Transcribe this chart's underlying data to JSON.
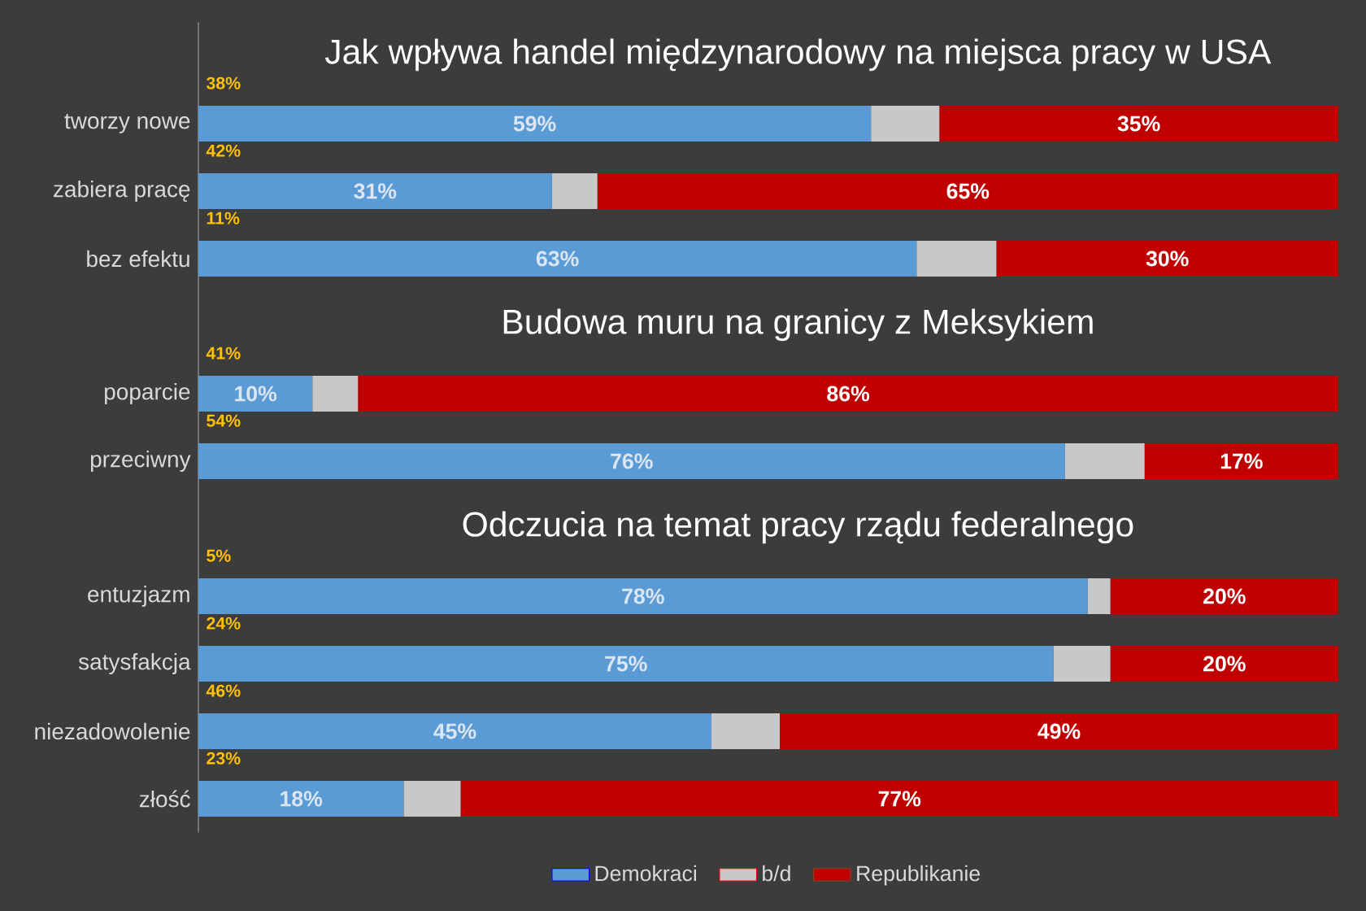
{
  "chart_data": [
    {
      "type": "bar",
      "orientation": "horizontal",
      "stacked": true,
      "title": "Jak wpływa handel międzynarodowy na miejsca pracy w USA",
      "categories": [
        "tworzy nowe",
        "zabiera pracę",
        "bez efektu"
      ],
      "xlim": [
        0,
        100
      ],
      "tick_labels": "y",
      "series": [
        {
          "color": "#5b9bd5",
          "values": [
            59,
            31,
            63
          ],
          "value_labels": [
            "59%",
            "31%",
            "63%"
          ]
        },
        {
          "color": "#c8c8c8",
          "values": [
            6,
            4,
            7
          ]
        },
        {
          "color": "#c00000",
          "values": [
            35,
            65,
            30
          ],
          "value_labels": [
            "35%",
            "65%",
            "30%"
          ]
        }
      ],
      "annotations": [
        "38%",
        "42%",
        "11%"
      ]
    },
    {
      "type": "bar",
      "orientation": "horizontal",
      "stacked": true,
      "title": "Budowa muru na granicy z Meksykiem",
      "categories": [
        "poparcie",
        "przeciwny"
      ],
      "xlim": [
        0,
        100
      ],
      "tick_labels": "y",
      "series": [
        {
          "color": "#5b9bd5",
          "values": [
            10,
            76
          ],
          "value_labels": [
            "10%",
            "76%"
          ]
        },
        {
          "color": "#c8c8c8",
          "values": [
            4,
            7
          ]
        },
        {
          "color": "#c00000",
          "values": [
            86,
            17
          ],
          "value_labels": [
            "86%",
            "17%"
          ]
        }
      ],
      "annotations": [
        "41%",
        "54%"
      ]
    },
    {
      "type": "bar",
      "orientation": "horizontal",
      "stacked": true,
      "title": "Odczucia na temat pracy rządu federalnego",
      "categories": [
        "entuzjazm",
        "satysfakcja",
        "niezadowolenie",
        "złość"
      ],
      "xlim": [
        0,
        100
      ],
      "tick_labels": "y",
      "legend": "bottom",
      "series": [
        {
          "name": "Demokraci",
          "color": "#5b9bd5",
          "values": [
            78,
            75,
            45,
            18
          ],
          "value_labels": [
            "78%",
            "75%",
            "45%",
            "18%"
          ]
        },
        {
          "name": "b/d",
          "color": "#c8c8c8",
          "values": [
            2,
            5,
            6,
            5
          ]
        },
        {
          "name": "Republikanie",
          "color": "#c00000",
          "values": [
            20,
            20,
            49,
            77
          ],
          "value_labels": [
            "20%",
            "20%",
            "49%",
            "77%"
          ]
        }
      ],
      "annotations": [
        "5%",
        "24%",
        "46%",
        "23%"
      ]
    }
  ]
}
